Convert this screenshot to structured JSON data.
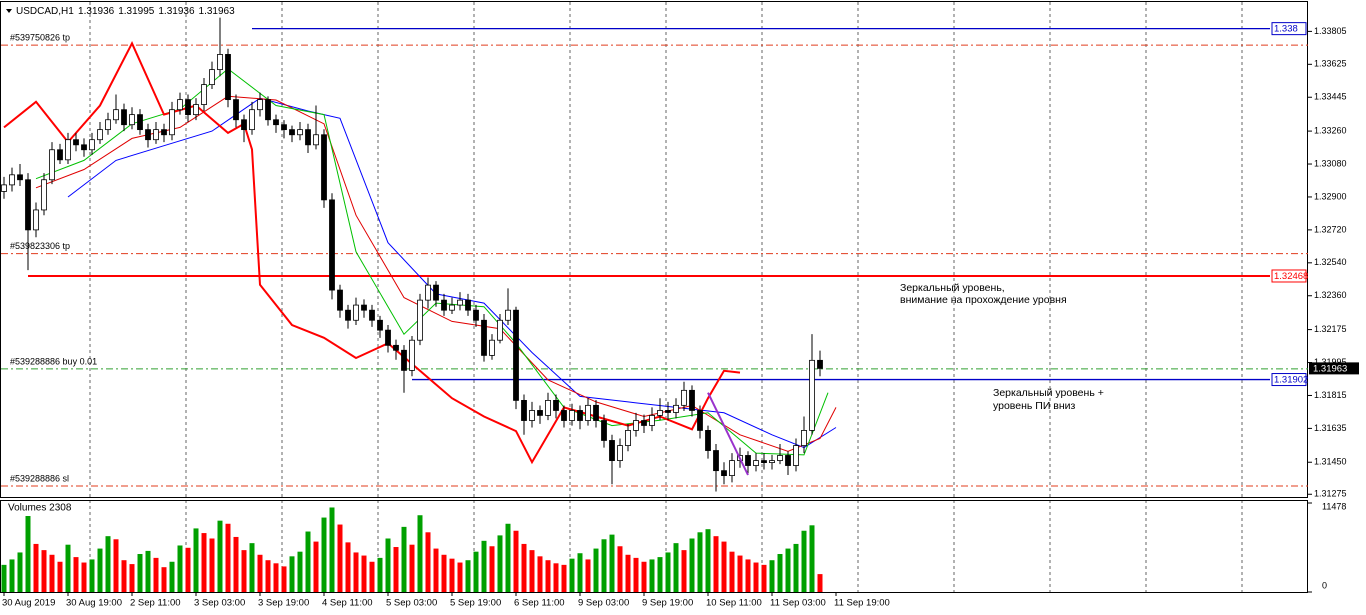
{
  "chart_data": [
    {
      "type": "candlestick",
      "title": "USDCAD,H1",
      "quote": [
        1.31936,
        1.31995,
        1.31936,
        1.31963
      ],
      "xlim": [
        -0.5,
        163
      ],
      "ylim": [
        1.3126,
        1.339
      ],
      "yticks": [
        1.33805,
        1.33625,
        1.33445,
        {
          "value": 1.3326,
          "label": "1.33260"
        },
        {
          "value": 1.3308,
          "label": "1.33080"
        },
        {
          "value": 1.329,
          "label": "1.32900"
        },
        {
          "value": 1.3272,
          "label": "1.32720"
        },
        {
          "value": 1.3254,
          "label": "1.32540"
        },
        {
          "value": 1.3236,
          "label": "1.32360"
        },
        1.32175,
        1.31995,
        1.31815,
        1.31635,
        {
          "value": 1.3145,
          "label": "1.31450"
        },
        1.31275
      ],
      "xticks": [
        {
          "value": 0,
          "label": "30 Aug 2019"
        },
        {
          "value": 8,
          "label": "30 Aug 19:00"
        },
        {
          "value": 16,
          "label": "2 Sep 11:00"
        },
        {
          "value": 24,
          "label": "3 Sep 03:00"
        },
        {
          "value": 32,
          "label": "3 Sep 19:00"
        },
        {
          "value": 40,
          "label": "4 Sep 11:00"
        },
        {
          "value": 48,
          "label": "5 Sep 03:00"
        },
        {
          "value": 56,
          "label": "5 Sep 19:00"
        },
        {
          "value": 64,
          "label": "6 Sep 11:00"
        },
        {
          "value": 72,
          "label": "9 Sep 03:00"
        },
        {
          "value": 80,
          "label": "9 Sep 19:00"
        },
        {
          "value": 88,
          "label": "10 Sep 11:00"
        },
        {
          "value": 96,
          "label": "11 Sep 03:00"
        },
        {
          "value": 104,
          "label": "11 Sep 19:00"
        }
      ],
      "up_color": "#ffffff",
      "down_color": "#000000",
      "edge_color": "#000000",
      "open": [
        1.3293,
        1.32966,
        1.33021,
        1.32994,
        1.3272,
        1.32829,
        1.32994,
        1.33158,
        1.33103,
        1.33213,
        1.33185,
        1.33158,
        1.33213,
        1.33268,
        1.33322,
        1.33377,
        1.33295,
        1.3335,
        1.33268,
        1.33213,
        1.33268,
        1.3324,
        1.33377,
        1.33432,
        1.3335,
        1.33405,
        1.33514,
        1.33596,
        1.33679,
        1.33432,
        1.33322,
        1.33268,
        1.33377,
        1.33432,
        1.33322,
        1.33295,
        1.33268,
        1.3324,
        1.33268,
        1.33185,
        1.3324,
        1.32884,
        1.32391,
        1.32281,
        1.32226,
        1.32309,
        1.32281,
        1.32226,
        1.32172,
        1.32089,
        1.32062,
        1.31952,
        1.32117,
        1.32336,
        1.32418,
        1.32336,
        1.32281,
        1.32309,
        1.32336,
        1.32281,
        1.32226,
        1.32034,
        1.32117,
        1.32226,
        1.32281,
        1.31788,
        1.31678,
        1.31733,
        1.31706,
        1.31788,
        1.31733,
        1.31678,
        1.31733,
        1.31678,
        1.31761,
        1.31678,
        1.31569,
        1.31459,
        1.31541,
        1.31624,
        1.31678,
        1.31651,
        1.31706,
        1.31733,
        1.31722,
        1.31761,
        1.31843,
        1.31733,
        1.31624,
        1.31514,
        1.31404,
        1.31377,
        1.31459,
        1.31487,
        1.31432,
        1.31459,
        1.31448,
        1.31459,
        1.31487,
        1.31432,
        1.31541,
        1.31624,
        1.32007
      ],
      "high": [
        1.3301,
        1.3306,
        1.3308,
        1.3303,
        1.3287,
        1.3303,
        1.332,
        1.3319,
        1.3325,
        1.3325,
        1.3322,
        1.3325,
        1.3331,
        1.3336,
        1.3346,
        1.3341,
        1.3339,
        1.3338,
        1.333,
        1.3331,
        1.333,
        1.3342,
        1.3347,
        1.3346,
        1.3344,
        1.3355,
        1.3364,
        1.3388,
        1.3371,
        1.3346,
        1.3335,
        1.3342,
        1.3347,
        1.3345,
        1.3335,
        1.3332,
        1.3329,
        1.3331,
        1.333,
        1.334,
        1.3327,
        1.3292,
        1.3242,
        1.3231,
        1.3235,
        1.3234,
        1.3231,
        1.3225,
        1.322,
        1.3212,
        1.3209,
        1.3214,
        1.3237,
        1.3246,
        1.3244,
        1.3237,
        1.3235,
        1.3238,
        1.3237,
        1.3231,
        1.3226,
        1.3215,
        1.3226,
        1.324,
        1.323,
        1.3182,
        1.3178,
        1.3176,
        1.3183,
        1.3182,
        1.3176,
        1.3177,
        1.3176,
        1.318,
        1.3179,
        1.3171,
        1.316,
        1.3158,
        1.3166,
        1.3172,
        1.3171,
        1.3175,
        1.318,
        1.3178,
        1.318,
        1.3189,
        1.3187,
        1.3176,
        1.3165,
        1.3155,
        1.3145,
        1.315,
        1.3153,
        1.3151,
        1.315,
        1.315,
        1.3149,
        1.3155,
        1.3151,
        1.3158,
        1.317,
        1.3215,
        1.3206
      ],
      "low": [
        1.3289,
        1.3293,
        1.3296,
        1.325,
        1.3268,
        1.328,
        1.3297,
        1.3308,
        1.3308,
        1.3315,
        1.3312,
        1.3313,
        1.3319,
        1.3324,
        1.333,
        1.3326,
        1.3327,
        1.3324,
        1.3317,
        1.3319,
        1.332,
        1.3321,
        1.3335,
        1.3331,
        1.3332,
        1.3337,
        1.3349,
        1.3356,
        1.3339,
        1.3328,
        1.332,
        1.3324,
        1.3334,
        1.3329,
        1.3325,
        1.3322,
        1.332,
        1.3321,
        1.3314,
        1.3316,
        1.3284,
        1.3234,
        1.3224,
        1.3218,
        1.322,
        1.3224,
        1.3219,
        1.3213,
        1.3205,
        1.3201,
        1.3183,
        1.3192,
        1.3209,
        1.3229,
        1.323,
        1.3225,
        1.3226,
        1.3228,
        1.3225,
        1.3219,
        1.32,
        1.3201,
        1.321,
        1.322,
        1.3174,
        1.316,
        1.3164,
        1.3166,
        1.3168,
        1.3169,
        1.3164,
        1.3165,
        1.3163,
        1.3165,
        1.3164,
        1.3153,
        1.3133,
        1.3142,
        1.3151,
        1.3159,
        1.3161,
        1.3162,
        1.3168,
        1.3168,
        1.3169,
        1.3173,
        1.317,
        1.3158,
        1.3147,
        1.3129,
        1.3133,
        1.3134,
        1.3142,
        1.3139,
        1.314,
        1.3141,
        1.3141,
        1.3144,
        1.3138,
        1.314,
        1.315,
        1.316,
        1.3192
      ],
      "close": [
        1.32966,
        1.33021,
        1.32994,
        1.3272,
        1.32829,
        1.32994,
        1.33158,
        1.33103,
        1.33213,
        1.33185,
        1.33158,
        1.33213,
        1.33268,
        1.33322,
        1.33377,
        1.33295,
        1.3335,
        1.33268,
        1.33213,
        1.33268,
        1.3324,
        1.33377,
        1.33432,
        1.3335,
        1.33405,
        1.33514,
        1.33596,
        1.33679,
        1.33432,
        1.33322,
        1.33268,
        1.33377,
        1.33432,
        1.33322,
        1.33295,
        1.33268,
        1.3324,
        1.33268,
        1.33185,
        1.3324,
        1.32884,
        1.32391,
        1.32281,
        1.32226,
        1.32309,
        1.32281,
        1.32226,
        1.32172,
        1.32089,
        1.32062,
        1.31952,
        1.32117,
        1.32336,
        1.32418,
        1.32336,
        1.32281,
        1.32309,
        1.32336,
        1.32281,
        1.32226,
        1.32034,
        1.32117,
        1.32226,
        1.32281,
        1.31788,
        1.31678,
        1.31733,
        1.31706,
        1.31788,
        1.31733,
        1.31678,
        1.31733,
        1.31678,
        1.31761,
        1.31678,
        1.31569,
        1.31459,
        1.31541,
        1.31624,
        1.31678,
        1.31651,
        1.31706,
        1.31733,
        1.31722,
        1.31761,
        1.31843,
        1.31733,
        1.31624,
        1.31514,
        1.31404,
        1.31377,
        1.31459,
        1.31487,
        1.31432,
        1.31459,
        1.31448,
        1.31459,
        1.31487,
        1.31432,
        1.31541,
        1.31624,
        1.32007,
        1.31963
      ],
      "last": 1.31963,
      "indicators": [
        {
          "color": "#0000ff",
          "x": [
            8,
            14,
            20,
            26,
            32,
            38,
            42,
            48,
            54,
            60,
            66,
            72,
            78,
            84,
            90,
            96,
            100,
            104
          ],
          "values": [
            1.329,
            1.331,
            1.3318,
            1.3326,
            1.3344,
            1.3337,
            1.3333,
            1.3265,
            1.3237,
            1.3232,
            1.3205,
            1.3181,
            1.3178,
            1.3175,
            1.3172,
            1.316,
            1.3153,
            1.3164
          ]
        },
        {
          "color": "#e00000",
          "x": [
            4,
            10,
            16,
            22,
            28,
            34,
            40,
            44,
            50,
            56,
            62,
            68,
            74,
            80,
            86,
            92,
            98,
            102,
            104
          ],
          "values": [
            1.3295,
            1.3305,
            1.3322,
            1.3328,
            1.3345,
            1.3343,
            1.333,
            1.328,
            1.3235,
            1.3222,
            1.3218,
            1.319,
            1.3178,
            1.317,
            1.3176,
            1.316,
            1.3151,
            1.3158,
            1.3175
          ]
        },
        {
          "color": "#00c000",
          "x": [
            4,
            10,
            16,
            22,
            28,
            34,
            40,
            44,
            50,
            54,
            60,
            64,
            70,
            76,
            82,
            88,
            94,
            100,
            103
          ],
          "values": [
            1.33,
            1.331,
            1.333,
            1.3338,
            1.336,
            1.334,
            1.3335,
            1.326,
            1.3215,
            1.3232,
            1.323,
            1.321,
            1.3175,
            1.3165,
            1.3168,
            1.3172,
            1.315,
            1.3149,
            1.3183
          ]
        },
        {
          "color": "#ff0000",
          "x": [
            0,
            4,
            8,
            12,
            16,
            20,
            24,
            28,
            30,
            31,
            32,
            36,
            40,
            44,
            48,
            52,
            56,
            60,
            64,
            66,
            70,
            74,
            78,
            82,
            86,
            88,
            90,
            92
          ],
          "values": [
            1.3328,
            1.3342,
            1.332,
            1.334,
            1.3374,
            1.3335,
            1.334,
            1.3325,
            1.333,
            1.3316,
            1.3242,
            1.322,
            1.3213,
            1.3202,
            1.321,
            1.3195,
            1.318,
            1.317,
            1.3162,
            1.3145,
            1.3175,
            1.317,
            1.3165,
            1.317,
            1.3163,
            1.318,
            1.3195,
            1.3194
          ]
        }
      ],
      "trendline": {
        "color": "#9932cc",
        "x": [
          88,
          93
        ],
        "values": [
          1.3183,
          1.3138
        ]
      },
      "levels": [
        {
          "value": 1.3382,
          "label": "1.338",
          "color": "#0000c8",
          "start": 31
        },
        {
          "value": 1.32468,
          "label": "1.32468",
          "color": "#ff0000",
          "start": 3
        },
        {
          "value": 1.31902,
          "label": "1.31902",
          "color": "#0000c8",
          "start": 51
        }
      ],
      "orders": [
        {
          "label": "#539750826 tp",
          "value": 1.3373,
          "color": "#e03c1e"
        },
        {
          "label": "#539823306 tp",
          "value": 1.3259,
          "color": "#e03c1e"
        },
        {
          "label": "#539288886 buy 0.01",
          "value": 1.3196,
          "color": "#30a030"
        },
        {
          "label": "#539288886 sl",
          "value": 1.3132,
          "color": "#e03c1e"
        }
      ],
      "annotations": [
        "Зеркальный уровень,",
        "внимание на прохождение уровня",
        "Зеркальный уровень +",
        "уровень ПИ вниз"
      ]
    },
    {
      "type": "bar",
      "title": "Volumes 2308",
      "ylim": [
        0,
        11478
      ],
      "yticks": [
        11478,
        0
      ],
      "up_color": "#00a000",
      "down_color": "#ff0000",
      "values": [
        3500,
        4200,
        5100,
        9800,
        6200,
        5400,
        4800,
        3900,
        6100,
        4500,
        3800,
        4200,
        5600,
        7200,
        6800,
        4100,
        3600,
        4900,
        5300,
        4400,
        3200,
        3900,
        6000,
        5700,
        8200,
        7600,
        6900,
        9200,
        8800,
        7100,
        5400,
        6300,
        4800,
        4100,
        3700,
        3300,
        4600,
        5200,
        7800,
        6500,
        9600,
        10900,
        8700,
        6400,
        5100,
        4700,
        3900,
        4400,
        6900,
        5800,
        8400,
        6100,
        9900,
        7700,
        5600,
        4800,
        4300,
        3800,
        4100,
        5200,
        6600,
        5900,
        7300,
        8800,
        7900,
        6200,
        5400,
        4600,
        4100,
        3700,
        3500,
        4300,
        5000,
        4200,
        5600,
        6800,
        7400,
        5900,
        4800,
        4400,
        3900,
        4200,
        4500,
        5100,
        6300,
        5400,
        6900,
        7700,
        8100,
        7200,
        6500,
        5200,
        4700,
        4200,
        3800,
        3500,
        4100,
        4900,
        5600,
        6200,
        7900,
        8600,
        2308
      ]
    }
  ]
}
